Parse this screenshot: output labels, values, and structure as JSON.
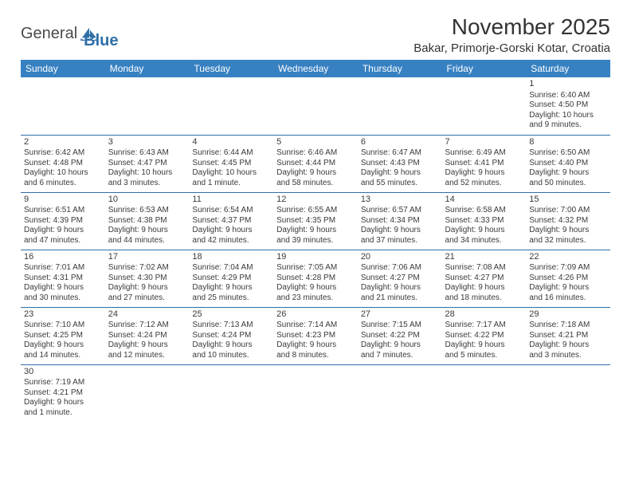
{
  "logo": {
    "part1": "General",
    "part2": "Blue"
  },
  "title": "November 2025",
  "location": "Bakar, Primorje-Gorski Kotar, Croatia",
  "colors": {
    "header_bg": "#3781c2",
    "header_text": "#ffffff",
    "cell_border": "#2f6fa8",
    "text": "#3a3a3a",
    "logo_gray": "#4a4a4a",
    "logo_blue": "#2f6fa8"
  },
  "weekdays": [
    "Sunday",
    "Monday",
    "Tuesday",
    "Wednesday",
    "Thursday",
    "Friday",
    "Saturday"
  ],
  "weeks": [
    [
      null,
      null,
      null,
      null,
      null,
      null,
      {
        "n": "1",
        "sr": "Sunrise: 6:40 AM",
        "ss": "Sunset: 4:50 PM",
        "d1": "Daylight: 10 hours",
        "d2": "and 9 minutes."
      }
    ],
    [
      {
        "n": "2",
        "sr": "Sunrise: 6:42 AM",
        "ss": "Sunset: 4:48 PM",
        "d1": "Daylight: 10 hours",
        "d2": "and 6 minutes."
      },
      {
        "n": "3",
        "sr": "Sunrise: 6:43 AM",
        "ss": "Sunset: 4:47 PM",
        "d1": "Daylight: 10 hours",
        "d2": "and 3 minutes."
      },
      {
        "n": "4",
        "sr": "Sunrise: 6:44 AM",
        "ss": "Sunset: 4:45 PM",
        "d1": "Daylight: 10 hours",
        "d2": "and 1 minute."
      },
      {
        "n": "5",
        "sr": "Sunrise: 6:46 AM",
        "ss": "Sunset: 4:44 PM",
        "d1": "Daylight: 9 hours",
        "d2": "and 58 minutes."
      },
      {
        "n": "6",
        "sr": "Sunrise: 6:47 AM",
        "ss": "Sunset: 4:43 PM",
        "d1": "Daylight: 9 hours",
        "d2": "and 55 minutes."
      },
      {
        "n": "7",
        "sr": "Sunrise: 6:49 AM",
        "ss": "Sunset: 4:41 PM",
        "d1": "Daylight: 9 hours",
        "d2": "and 52 minutes."
      },
      {
        "n": "8",
        "sr": "Sunrise: 6:50 AM",
        "ss": "Sunset: 4:40 PM",
        "d1": "Daylight: 9 hours",
        "d2": "and 50 minutes."
      }
    ],
    [
      {
        "n": "9",
        "sr": "Sunrise: 6:51 AM",
        "ss": "Sunset: 4:39 PM",
        "d1": "Daylight: 9 hours",
        "d2": "and 47 minutes."
      },
      {
        "n": "10",
        "sr": "Sunrise: 6:53 AM",
        "ss": "Sunset: 4:38 PM",
        "d1": "Daylight: 9 hours",
        "d2": "and 44 minutes."
      },
      {
        "n": "11",
        "sr": "Sunrise: 6:54 AM",
        "ss": "Sunset: 4:37 PM",
        "d1": "Daylight: 9 hours",
        "d2": "and 42 minutes."
      },
      {
        "n": "12",
        "sr": "Sunrise: 6:55 AM",
        "ss": "Sunset: 4:35 PM",
        "d1": "Daylight: 9 hours",
        "d2": "and 39 minutes."
      },
      {
        "n": "13",
        "sr": "Sunrise: 6:57 AM",
        "ss": "Sunset: 4:34 PM",
        "d1": "Daylight: 9 hours",
        "d2": "and 37 minutes."
      },
      {
        "n": "14",
        "sr": "Sunrise: 6:58 AM",
        "ss": "Sunset: 4:33 PM",
        "d1": "Daylight: 9 hours",
        "d2": "and 34 minutes."
      },
      {
        "n": "15",
        "sr": "Sunrise: 7:00 AM",
        "ss": "Sunset: 4:32 PM",
        "d1": "Daylight: 9 hours",
        "d2": "and 32 minutes."
      }
    ],
    [
      {
        "n": "16",
        "sr": "Sunrise: 7:01 AM",
        "ss": "Sunset: 4:31 PM",
        "d1": "Daylight: 9 hours",
        "d2": "and 30 minutes."
      },
      {
        "n": "17",
        "sr": "Sunrise: 7:02 AM",
        "ss": "Sunset: 4:30 PM",
        "d1": "Daylight: 9 hours",
        "d2": "and 27 minutes."
      },
      {
        "n": "18",
        "sr": "Sunrise: 7:04 AM",
        "ss": "Sunset: 4:29 PM",
        "d1": "Daylight: 9 hours",
        "d2": "and 25 minutes."
      },
      {
        "n": "19",
        "sr": "Sunrise: 7:05 AM",
        "ss": "Sunset: 4:28 PM",
        "d1": "Daylight: 9 hours",
        "d2": "and 23 minutes."
      },
      {
        "n": "20",
        "sr": "Sunrise: 7:06 AM",
        "ss": "Sunset: 4:27 PM",
        "d1": "Daylight: 9 hours",
        "d2": "and 21 minutes."
      },
      {
        "n": "21",
        "sr": "Sunrise: 7:08 AM",
        "ss": "Sunset: 4:27 PM",
        "d1": "Daylight: 9 hours",
        "d2": "and 18 minutes."
      },
      {
        "n": "22",
        "sr": "Sunrise: 7:09 AM",
        "ss": "Sunset: 4:26 PM",
        "d1": "Daylight: 9 hours",
        "d2": "and 16 minutes."
      }
    ],
    [
      {
        "n": "23",
        "sr": "Sunrise: 7:10 AM",
        "ss": "Sunset: 4:25 PM",
        "d1": "Daylight: 9 hours",
        "d2": "and 14 minutes."
      },
      {
        "n": "24",
        "sr": "Sunrise: 7:12 AM",
        "ss": "Sunset: 4:24 PM",
        "d1": "Daylight: 9 hours",
        "d2": "and 12 minutes."
      },
      {
        "n": "25",
        "sr": "Sunrise: 7:13 AM",
        "ss": "Sunset: 4:24 PM",
        "d1": "Daylight: 9 hours",
        "d2": "and 10 minutes."
      },
      {
        "n": "26",
        "sr": "Sunrise: 7:14 AM",
        "ss": "Sunset: 4:23 PM",
        "d1": "Daylight: 9 hours",
        "d2": "and 8 minutes."
      },
      {
        "n": "27",
        "sr": "Sunrise: 7:15 AM",
        "ss": "Sunset: 4:22 PM",
        "d1": "Daylight: 9 hours",
        "d2": "and 7 minutes."
      },
      {
        "n": "28",
        "sr": "Sunrise: 7:17 AM",
        "ss": "Sunset: 4:22 PM",
        "d1": "Daylight: 9 hours",
        "d2": "and 5 minutes."
      },
      {
        "n": "29",
        "sr": "Sunrise: 7:18 AM",
        "ss": "Sunset: 4:21 PM",
        "d1": "Daylight: 9 hours",
        "d2": "and 3 minutes."
      }
    ],
    [
      {
        "n": "30",
        "sr": "Sunrise: 7:19 AM",
        "ss": "Sunset: 4:21 PM",
        "d1": "Daylight: 9 hours",
        "d2": "and 1 minute."
      },
      null,
      null,
      null,
      null,
      null,
      null
    ]
  ]
}
